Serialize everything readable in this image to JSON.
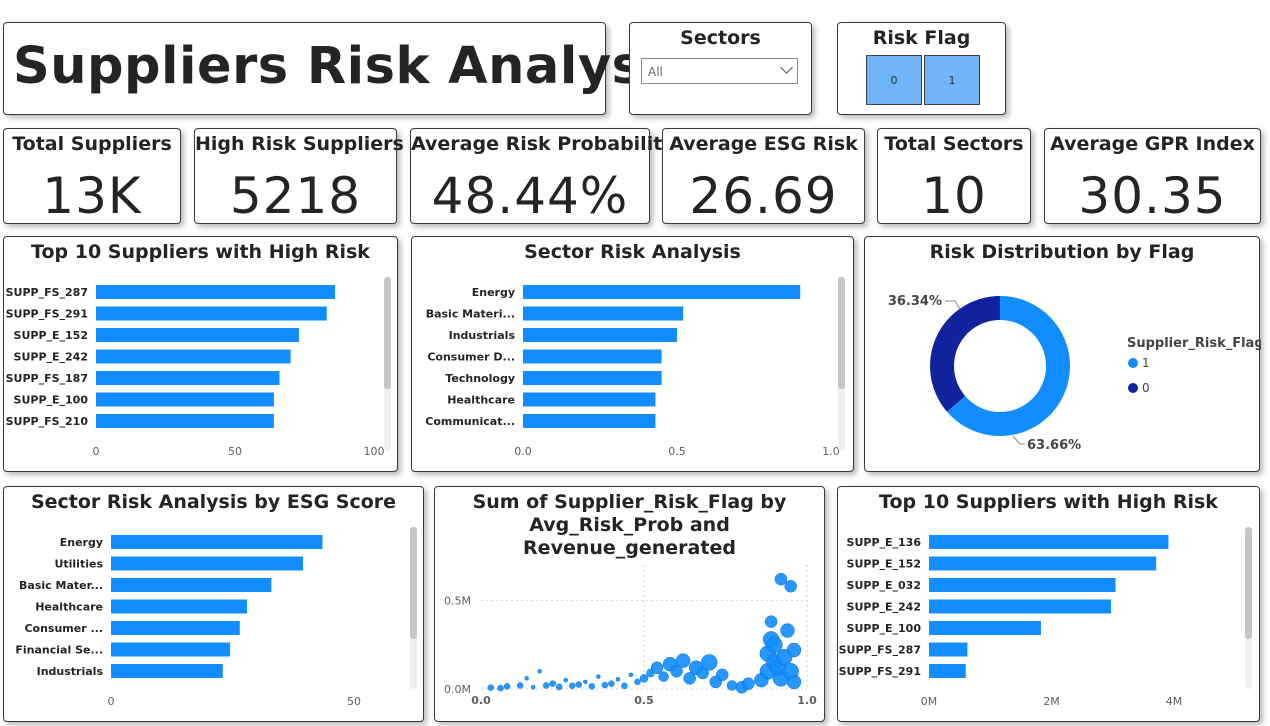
{
  "title": "Suppliers Risk Analysis",
  "slicers": {
    "sectors": {
      "title": "Sectors",
      "value": "All"
    },
    "risk_flag": {
      "title": "Risk Flag",
      "options": [
        "0",
        "1"
      ]
    }
  },
  "kpis": [
    {
      "label": "Total Suppliers",
      "value": "13K"
    },
    {
      "label": "High Risk Suppliers",
      "value": "5218"
    },
    {
      "label": "Average Risk Probability",
      "value": "48.44%"
    },
    {
      "label": "Average ESG Risk",
      "value": "26.69"
    },
    {
      "label": "Total Sectors",
      "value": "10"
    },
    {
      "label": "Average GPR Index",
      "value": "30.35"
    }
  ],
  "colors": {
    "bar": "#118dff",
    "dark": "#12239e",
    "scroll": "#c8c6c4"
  },
  "chart_data": [
    {
      "id": "top10_risk",
      "type": "bar",
      "orientation": "horizontal",
      "title": "Top 10 Suppliers with High Risk",
      "categories": [
        "SUPP_FS_287",
        "SUPP_FS_291",
        "SUPP_E_152",
        "SUPP_E_242",
        "SUPP_FS_187",
        "SUPP_E_100",
        "SUPP_FS_210"
      ],
      "values": [
        86,
        83,
        73,
        70,
        66,
        64,
        64
      ],
      "xlim": [
        0,
        100
      ],
      "xticks": [
        "0",
        "50",
        "100"
      ]
    },
    {
      "id": "sector_risk",
      "type": "bar",
      "orientation": "horizontal",
      "title": "Sector Risk Analysis",
      "categories": [
        "Energy",
        "Basic Materi...",
        "Industrials",
        "Consumer D...",
        "Technology",
        "Healthcare",
        "Communicat..."
      ],
      "values": [
        0.9,
        0.52,
        0.5,
        0.45,
        0.45,
        0.43,
        0.43
      ],
      "xlim": [
        0,
        1
      ],
      "xticks": [
        "0.0",
        "0.5",
        "1.0"
      ]
    },
    {
      "id": "risk_flag_dist",
      "type": "pie",
      "title": "Risk Distribution by Flag",
      "legend_title": "Supplier_Risk_Flag",
      "slices": [
        {
          "label": "1",
          "value": 63.66,
          "pct": "63.66%",
          "color": "#118dff"
        },
        {
          "label": "0",
          "value": 36.34,
          "pct": "36.34%",
          "color": "#12239e"
        }
      ]
    },
    {
      "id": "sector_esg",
      "type": "bar",
      "orientation": "horizontal",
      "title": "Sector Risk Analysis by ESG Score",
      "categories": [
        "Energy",
        "Utilities",
        "Basic Mater...",
        "Healthcare",
        "Consumer ...",
        "Financial Se...",
        "Industrials"
      ],
      "values": [
        43.5,
        39.5,
        33,
        28,
        26.5,
        24.5,
        23
      ],
      "xlim": [
        0,
        50
      ],
      "xticks": [
        "0",
        "50"
      ]
    },
    {
      "id": "scatter_risk_revenue",
      "type": "scatter",
      "title": "Sum of Supplier_Risk_Flag by Avg_Risk_Prob and Revenue_generated",
      "title_lines": [
        "Sum of Supplier_Risk_Flag by",
        "Avg_Risk_Prob and Revenue_generated"
      ],
      "xlim": [
        0,
        1
      ],
      "ylim": [
        0,
        700000
      ],
      "xticks": [
        "0.0",
        "0.5",
        "1.0"
      ],
      "yticks": [
        "0.0M",
        "0.5M"
      ],
      "points": [
        [
          0.03,
          8000,
          3
        ],
        [
          0.06,
          5000,
          3
        ],
        [
          0.08,
          15000,
          3
        ],
        [
          0.12,
          20000,
          3
        ],
        [
          0.14,
          60000,
          2
        ],
        [
          0.16,
          10000,
          2
        ],
        [
          0.18,
          100000,
          2
        ],
        [
          0.2,
          20000,
          3
        ],
        [
          0.22,
          30000,
          3
        ],
        [
          0.24,
          12000,
          3
        ],
        [
          0.26,
          50000,
          2
        ],
        [
          0.28,
          18000,
          3
        ],
        [
          0.3,
          25000,
          3
        ],
        [
          0.32,
          40000,
          2
        ],
        [
          0.34,
          15000,
          3
        ],
        [
          0.36,
          70000,
          2
        ],
        [
          0.38,
          22000,
          3
        ],
        [
          0.4,
          30000,
          3
        ],
        [
          0.42,
          55000,
          2
        ],
        [
          0.44,
          18000,
          3
        ],
        [
          0.46,
          80000,
          2
        ],
        [
          0.48,
          40000,
          3
        ],
        [
          0.5,
          60000,
          4
        ],
        [
          0.52,
          90000,
          4
        ],
        [
          0.54,
          120000,
          6
        ],
        [
          0.56,
          70000,
          5
        ],
        [
          0.58,
          140000,
          7
        ],
        [
          0.6,
          100000,
          6
        ],
        [
          0.62,
          160000,
          7
        ],
        [
          0.64,
          60000,
          6
        ],
        [
          0.66,
          120000,
          7
        ],
        [
          0.68,
          90000,
          6
        ],
        [
          0.7,
          150000,
          8
        ],
        [
          0.72,
          40000,
          6
        ],
        [
          0.74,
          80000,
          6
        ],
        [
          0.77,
          20000,
          5
        ],
        [
          0.8,
          10000,
          6
        ],
        [
          0.82,
          30000,
          6
        ],
        [
          0.86,
          50000,
          7
        ],
        [
          0.88,
          100000,
          8
        ],
        [
          0.88,
          200000,
          8
        ],
        [
          0.89,
          280000,
          8
        ],
        [
          0.89,
          380000,
          6
        ],
        [
          0.9,
          150000,
          8
        ],
        [
          0.9,
          250000,
          8
        ],
        [
          0.91,
          120000,
          8
        ],
        [
          0.92,
          620000,
          6
        ],
        [
          0.92,
          60000,
          8
        ],
        [
          0.93,
          180000,
          8
        ],
        [
          0.94,
          330000,
          7
        ],
        [
          0.95,
          580000,
          6
        ],
        [
          0.95,
          100000,
          8
        ],
        [
          0.96,
          40000,
          7
        ],
        [
          0.96,
          220000,
          7
        ]
      ]
    },
    {
      "id": "top10_revenue",
      "type": "bar",
      "orientation": "horizontal",
      "title": "Top 10 Suppliers with High Risk",
      "categories": [
        "SUPP_E_136",
        "SUPP_E_152",
        "SUPP_E_032",
        "SUPP_E_242",
        "SUPP_E_100",
        "SUPP_FS_287",
        "SUPP_FS_291"
      ],
      "values": [
        4300000,
        4080000,
        3350000,
        3270000,
        2010000,
        690000,
        660000
      ],
      "xlim": [
        0,
        4400000
      ],
      "xticks": [
        "0M",
        "2M",
        "4M"
      ]
    }
  ]
}
